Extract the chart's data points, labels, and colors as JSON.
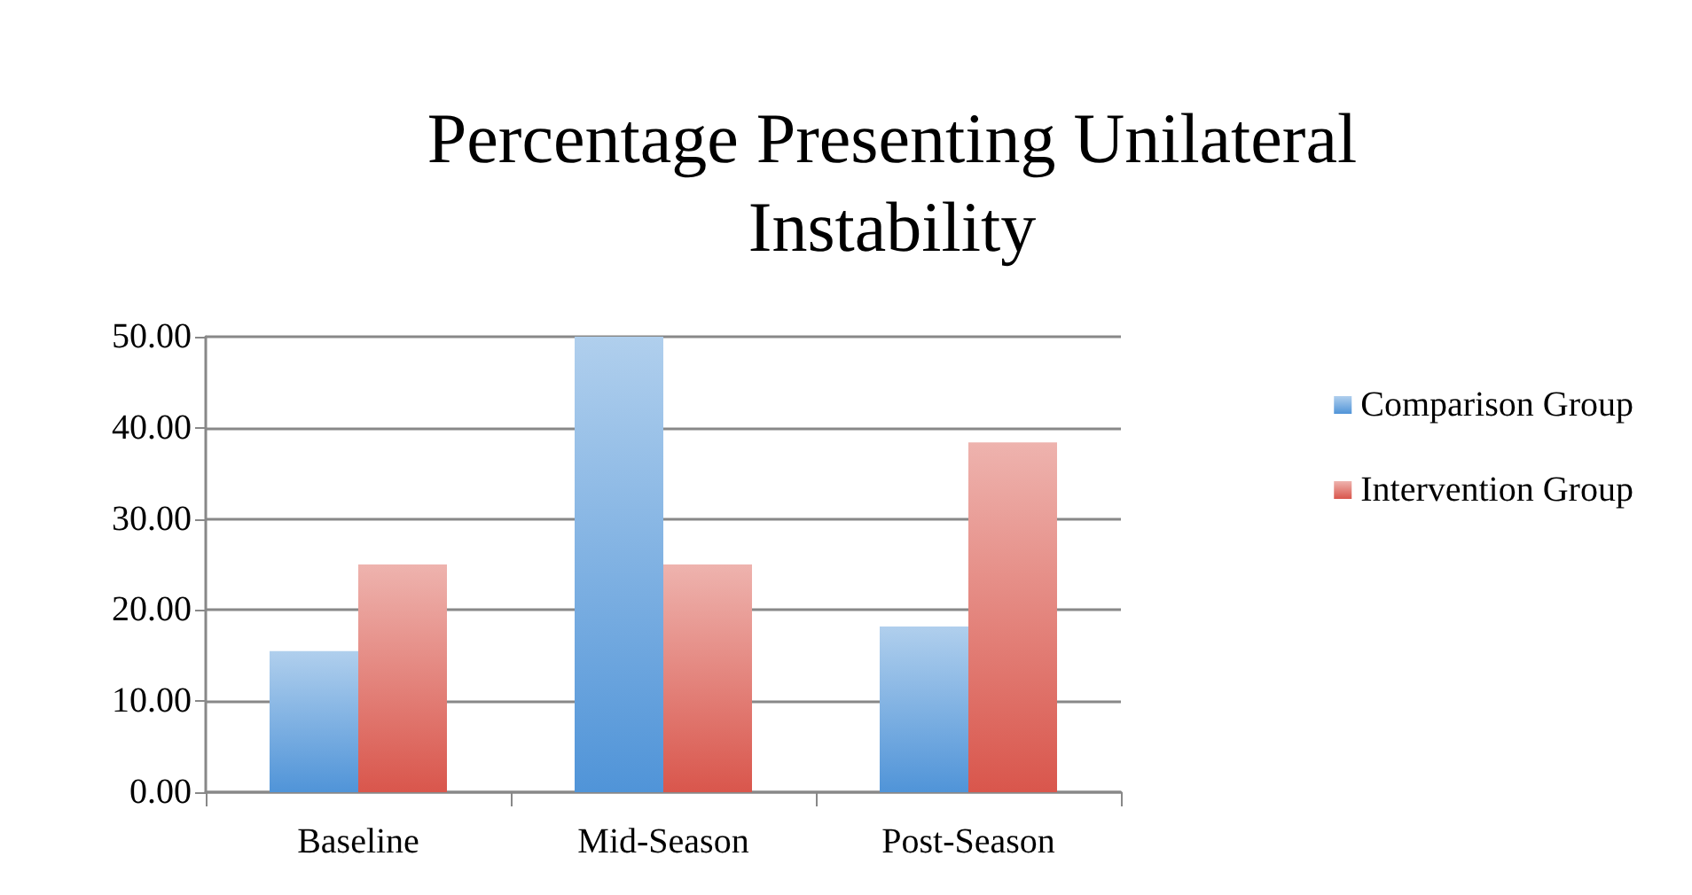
{
  "chart_data": {
    "type": "bar",
    "title": "Percentage Presenting Unilateral\nInstability",
    "categories": [
      "Baseline",
      "Mid-Season",
      "Post-Season"
    ],
    "series": [
      {
        "name": "Comparison Group",
        "color": "#5094d8",
        "values": [
          15.5,
          50,
          18.2
        ]
      },
      {
        "name": "Intervention Group",
        "color": "#d9564c",
        "values": [
          25,
          25,
          38.4
        ]
      }
    ],
    "ylim": [
      0,
      50
    ],
    "yticks": [
      {
        "value": 0,
        "label": "0.00"
      },
      {
        "value": 10,
        "label": "10.00"
      },
      {
        "value": 20,
        "label": "20.00"
      },
      {
        "value": 30,
        "label": "30.00"
      },
      {
        "value": 40,
        "label": "40.00"
      },
      {
        "value": 50,
        "label": "50.00"
      }
    ],
    "grid": "y",
    "legend": "right"
  }
}
